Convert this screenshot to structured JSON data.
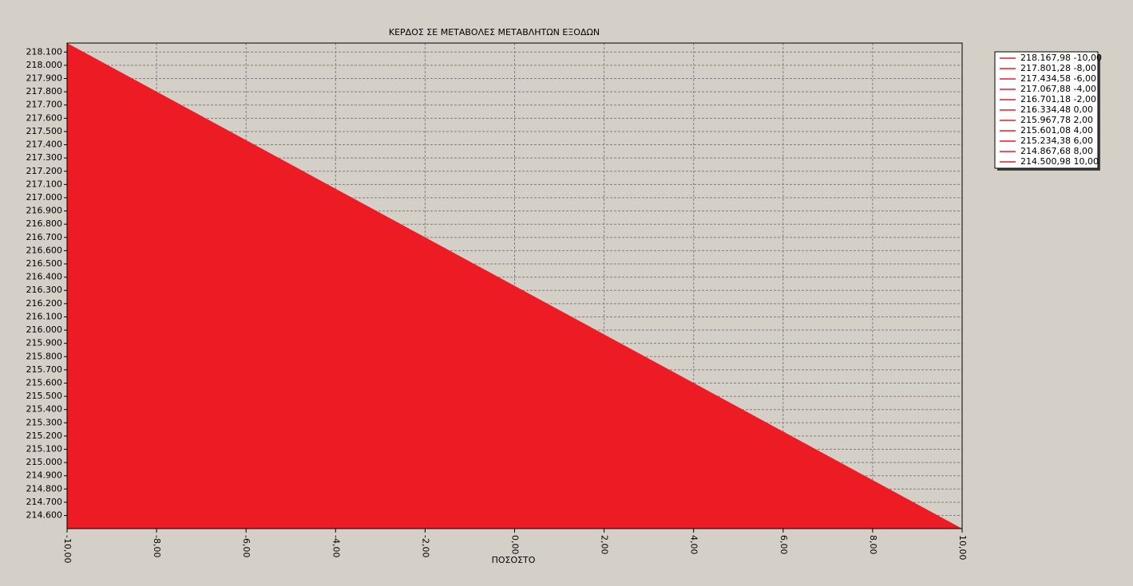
{
  "chart_data": {
    "type": "area",
    "title": "ΚΕΡΔΟΣ ΣΕ ΜΕΤΑΒΟΛΕΣ ΜΕΤΑΒΛΗΤΩΝ ΕΞΟΔΩΝ",
    "x_label": "ΠΟΣΟΣΤΟ",
    "x": [
      -10,
      -8,
      -6,
      -4,
      -2,
      0,
      2,
      4,
      6,
      8,
      10
    ],
    "values": [
      218167.98,
      217801.28,
      217434.58,
      217067.88,
      216701.18,
      216334.48,
      215967.78,
      215601.08,
      215234.38,
      214867.68,
      214500.98
    ],
    "color": "#ed1c24",
    "legend_entries": [
      "218.167,98 -10,00",
      "217.801,28 -8,00",
      "217.434,58 -6,00",
      "217.067,88 -4,00",
      "216.701,18 -2,00",
      "216.334,48 0,00",
      "215.967,78 2,00",
      "215.601,08 4,00",
      "215.234,38 6,00",
      "214.867,68 8,00",
      "214.500,98 10,00"
    ],
    "legend": "upper right",
    "grid": true,
    "xlim": [
      -10,
      10
    ],
    "xticks": [
      {
        "value": -10,
        "label": "-10,00"
      },
      {
        "value": -8,
        "label": "-8,00"
      },
      {
        "value": -6,
        "label": "-6,00"
      },
      {
        "value": -4,
        "label": "-4,00"
      },
      {
        "value": -2,
        "label": "-2,00"
      },
      {
        "value": 0,
        "label": "0,00"
      },
      {
        "value": 2,
        "label": "2,00"
      },
      {
        "value": 4,
        "label": "4,00"
      },
      {
        "value": 6,
        "label": "6,00"
      },
      {
        "value": 8,
        "label": "8,00"
      },
      {
        "value": 10,
        "label": "10,00"
      }
    ],
    "ylim": [
      214501,
      218168
    ],
    "yticks": [
      {
        "value": 214600,
        "label": "214.600"
      },
      {
        "value": 214700,
        "label": "214.700"
      },
      {
        "value": 214800,
        "label": "214.800"
      },
      {
        "value": 214900,
        "label": "214.900"
      },
      {
        "value": 215000,
        "label": "215.000"
      },
      {
        "value": 215100,
        "label": "215.100"
      },
      {
        "value": 215200,
        "label": "215.200"
      },
      {
        "value": 215300,
        "label": "215.300"
      },
      {
        "value": 215400,
        "label": "215.400"
      },
      {
        "value": 215500,
        "label": "215.500"
      },
      {
        "value": 215600,
        "label": "215.600"
      },
      {
        "value": 215700,
        "label": "215.700"
      },
      {
        "value": 215800,
        "label": "215.800"
      },
      {
        "value": 215900,
        "label": "215.900"
      },
      {
        "value": 216000,
        "label": "216.000"
      },
      {
        "value": 216100,
        "label": "216.100"
      },
      {
        "value": 216200,
        "label": "216.200"
      },
      {
        "value": 216300,
        "label": "216.300"
      },
      {
        "value": 216400,
        "label": "216.400"
      },
      {
        "value": 216500,
        "label": "216.500"
      },
      {
        "value": 216600,
        "label": "216.600"
      },
      {
        "value": 216700,
        "label": "216.700"
      },
      {
        "value": 216800,
        "label": "216.800"
      },
      {
        "value": 216900,
        "label": "216.900"
      },
      {
        "value": 217000,
        "label": "217.000"
      },
      {
        "value": 217100,
        "label": "217.100"
      },
      {
        "value": 217200,
        "label": "217.200"
      },
      {
        "value": 217300,
        "label": "217.300"
      },
      {
        "value": 217400,
        "label": "217.400"
      },
      {
        "value": 217500,
        "label": "217.500"
      },
      {
        "value": 217600,
        "label": "217.600"
      },
      {
        "value": 217700,
        "label": "217.700"
      },
      {
        "value": 217800,
        "label": "217.800"
      },
      {
        "value": 217900,
        "label": "217.900"
      },
      {
        "value": 218000,
        "label": "218.000"
      },
      {
        "value": 218100,
        "label": "218.100"
      }
    ]
  }
}
